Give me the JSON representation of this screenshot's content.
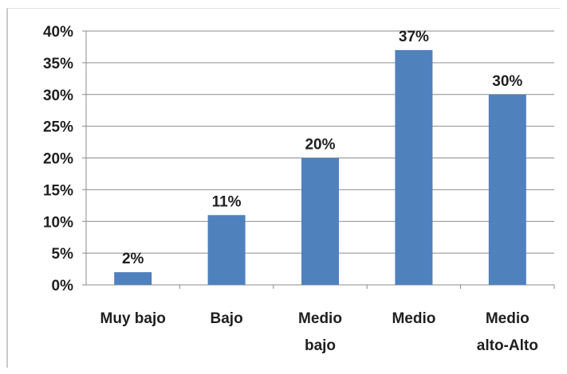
{
  "chart_data": {
    "type": "bar",
    "categories": [
      [
        "Muy bajo"
      ],
      [
        "Bajo"
      ],
      [
        "Medio",
        "bajo"
      ],
      [
        "Medio"
      ],
      [
        "Medio",
        "alto-Alto"
      ]
    ],
    "values": [
      2,
      11,
      20,
      37,
      30
    ],
    "data_labels": [
      "2%",
      "11%",
      "20%",
      "37%",
      "30%"
    ],
    "y_ticks": [
      0,
      5,
      10,
      15,
      20,
      25,
      30,
      35,
      40
    ],
    "y_tick_labels": [
      "0%",
      "5%",
      "10%",
      "15%",
      "20%",
      "25%",
      "30%",
      "35%",
      "40%"
    ],
    "ylim": [
      0,
      40
    ],
    "grid": true,
    "legend": "none",
    "bar_color": "#4f81bd",
    "title": "",
    "xlabel": "",
    "ylabel": ""
  }
}
